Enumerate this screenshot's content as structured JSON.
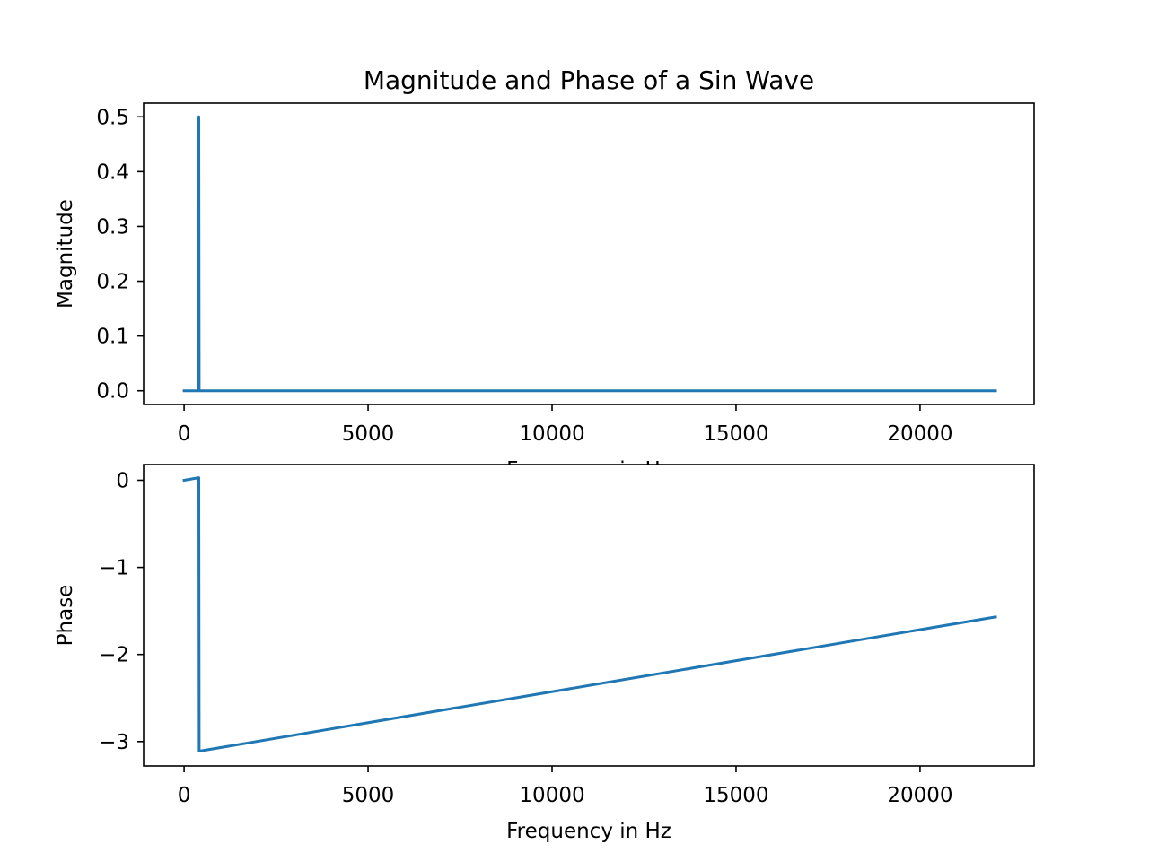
{
  "figure": {
    "title": "Magnitude and Phase of a Sin Wave"
  },
  "chart_data": [
    {
      "type": "line",
      "title": "Magnitude and Phase of a Sin Wave",
      "xlabel": "Frequency in Hz",
      "ylabel": "Magnitude",
      "xlim": [
        -1100,
        23100
      ],
      "ylim": [
        -0.025,
        0.525
      ],
      "xticks": [
        0,
        5000,
        10000,
        15000,
        20000
      ],
      "xtick_labels": [
        "0",
        "5000",
        "10000",
        "15000",
        "20000"
      ],
      "yticks": [
        0.0,
        0.1,
        0.2,
        0.3,
        0.4,
        0.5
      ],
      "ytick_labels": [
        "0.0",
        "0.1",
        "0.2",
        "0.3",
        "0.4",
        "0.5"
      ],
      "grid": false,
      "line_color": "#1f77b4",
      "series": [
        {
          "x": [
            0,
            380,
            390,
            400,
            410,
            420,
            22050
          ],
          "y": [
            0,
            0,
            0,
            0.5,
            0,
            0,
            0
          ]
        }
      ]
    },
    {
      "type": "line",
      "xlabel": "Frequency in Hz",
      "ylabel": "Phase",
      "xlim": [
        -1100,
        23100
      ],
      "ylim": [
        -3.28,
        0.18
      ],
      "xticks": [
        0,
        5000,
        10000,
        15000,
        20000
      ],
      "xtick_labels": [
        "0",
        "5000",
        "10000",
        "15000",
        "20000"
      ],
      "yticks": [
        0,
        -1,
        -2,
        -3
      ],
      "ytick_labels": [
        "0",
        "−1",
        "−2",
        "−3"
      ],
      "grid": false,
      "line_color": "#1f77b4",
      "series": [
        {
          "x": [
            0,
            400,
            410,
            22050
          ],
          "y": [
            0.0,
            0.03,
            -3.11,
            -1.57
          ]
        }
      ]
    }
  ]
}
